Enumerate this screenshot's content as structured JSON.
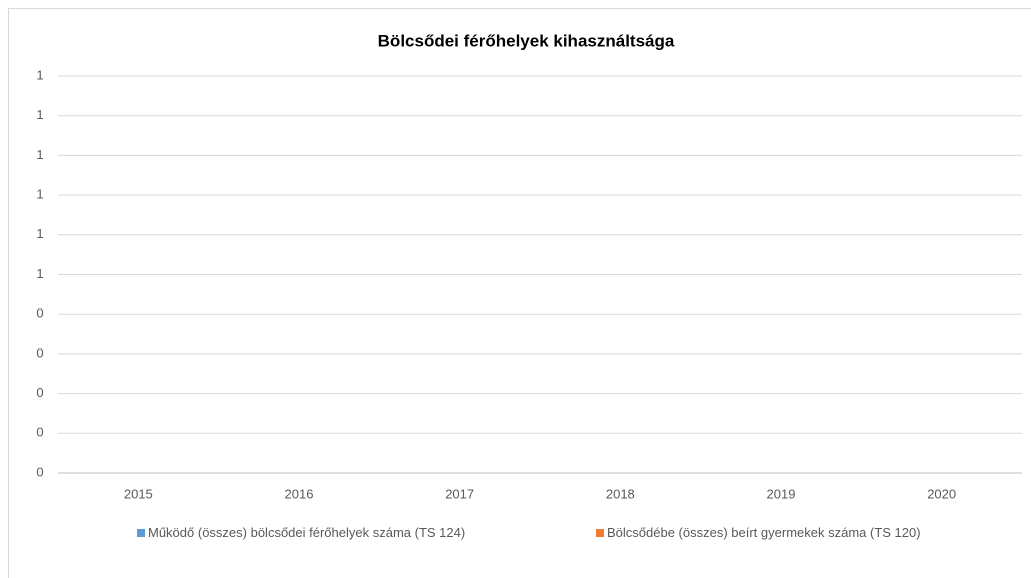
{
  "chart_data": {
    "type": "bar",
    "title": "Bölcsődei férőhelyek kihasználtsága",
    "categories": [
      "2015",
      "2016",
      "2017",
      "2018",
      "2019",
      "2020"
    ],
    "series": [
      {
        "name": "Működő (összes) bölcsődei férőhelyek száma (TS 124)",
        "color": "#5b9bd5",
        "values": [
          null,
          null,
          null,
          null,
          null,
          null
        ]
      },
      {
        "name": "Bölcsődébe (összes) beírt gyermekek száma (TS 120)",
        "color": "#ed7d31",
        "values": [
          null,
          null,
          null,
          null,
          null,
          null
        ]
      }
    ],
    "ylim": [
      0,
      1
    ],
    "yticks": [
      0,
      {
        "value": 0.1,
        "label": "0"
      },
      {
        "value": 0.2,
        "label": "0"
      },
      {
        "value": 0.3,
        "label": "0"
      },
      {
        "value": 0.4,
        "label": "0"
      },
      {
        "value": 0.5,
        "label": "1"
      },
      {
        "value": 0.6,
        "label": "1"
      },
      {
        "value": 0.7,
        "label": "1"
      },
      {
        "value": 0.8,
        "label": "1"
      },
      {
        "value": 0.9,
        "label": "1"
      },
      1
    ],
    "grid": true,
    "legend": "bottom"
  }
}
